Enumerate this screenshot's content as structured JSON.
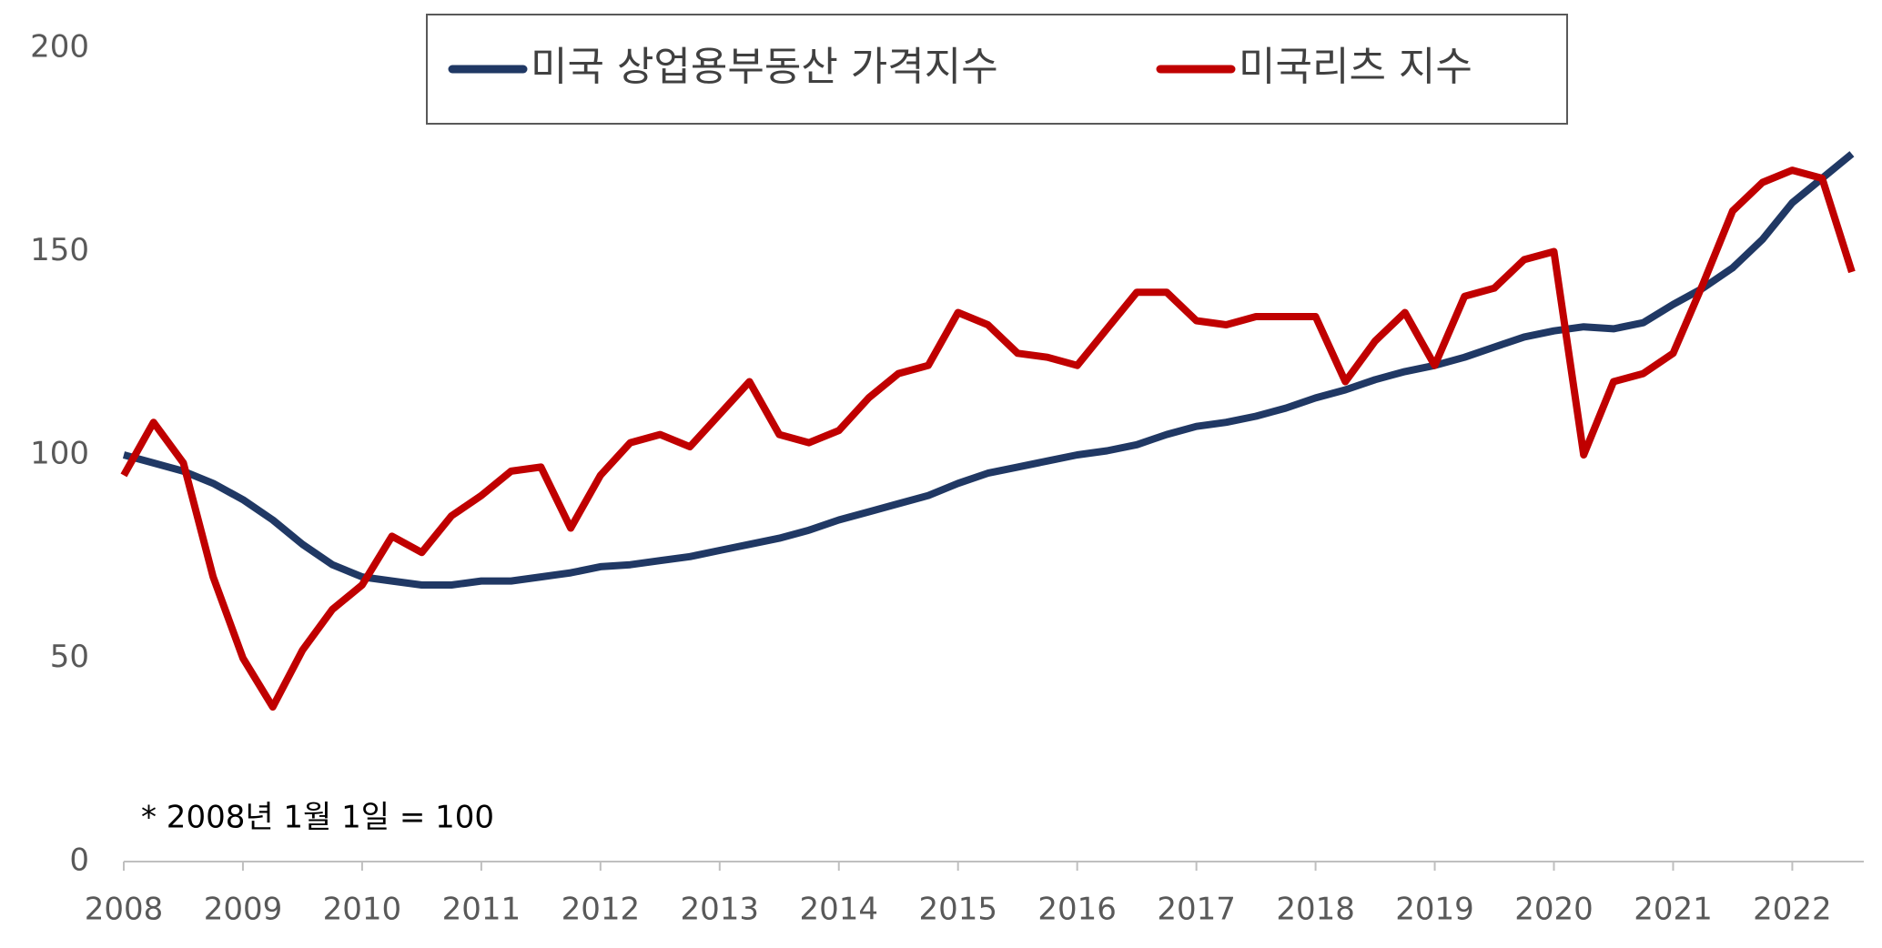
{
  "chart_data": {
    "type": "line",
    "note": "* 2008년 1월 1일 = 100",
    "x": [
      2008.0,
      2008.25,
      2008.5,
      2008.75,
      2009.0,
      2009.25,
      2009.5,
      2009.75,
      2010.0,
      2010.25,
      2010.5,
      2010.75,
      2011.0,
      2011.25,
      2011.5,
      2011.75,
      2012.0,
      2012.25,
      2012.5,
      2012.75,
      2013.0,
      2013.25,
      2013.5,
      2013.75,
      2014.0,
      2014.25,
      2014.5,
      2014.75,
      2015.0,
      2015.25,
      2015.5,
      2015.75,
      2016.0,
      2016.25,
      2016.5,
      2016.75,
      2017.0,
      2017.25,
      2017.5,
      2017.75,
      2018.0,
      2018.25,
      2018.5,
      2018.75,
      2019.0,
      2019.25,
      2019.5,
      2019.75,
      2020.0,
      2020.25,
      2020.5,
      2020.75,
      2021.0,
      2021.25,
      2021.5,
      2021.75,
      2022.0,
      2022.25,
      2022.5
    ],
    "series": [
      {
        "name": "미국 상업용부동산 가격지수",
        "color": "#203864",
        "values": [
          100,
          98,
          96,
          93,
          89,
          84,
          78,
          73,
          70,
          69,
          68,
          68,
          69,
          69,
          70,
          71,
          72.5,
          73,
          74,
          75,
          76.5,
          78,
          79.5,
          81.5,
          84,
          86,
          88,
          90,
          93,
          95.5,
          97,
          98.5,
          100,
          101,
          102.5,
          105,
          107,
          108,
          109.5,
          111.5,
          114,
          116,
          118.5,
          120.5,
          122,
          124,
          126.5,
          129,
          130.5,
          131.5,
          131,
          132.5,
          137,
          141,
          146,
          153,
          162,
          168,
          174
        ]
      },
      {
        "name": "미국리츠 지수",
        "color": "#c00000",
        "values": [
          95,
          108,
          98,
          70,
          50,
          38,
          52,
          62,
          68,
          80,
          76,
          85,
          90,
          96,
          97,
          82,
          95,
          103,
          105,
          102,
          110,
          118,
          105,
          103,
          106,
          114,
          120,
          122,
          135,
          132,
          125,
          124,
          122,
          131,
          140,
          140,
          133,
          132,
          134,
          134,
          134,
          118,
          128,
          135,
          122,
          139,
          141,
          148,
          150,
          100,
          118,
          120,
          125,
          142,
          160,
          167,
          170,
          168,
          145
        ]
      }
    ],
    "xlim": [
      2008,
      2022.6
    ],
    "xticks": [
      2008,
      2009,
      2010,
      2011,
      2012,
      2013,
      2014,
      2015,
      2016,
      2017,
      2018,
      2019,
      2020,
      2021,
      2022
    ],
    "ylim": [
      0,
      200
    ],
    "yticks": [
      0,
      50,
      100,
      150,
      200
    ],
    "grid": false
  }
}
